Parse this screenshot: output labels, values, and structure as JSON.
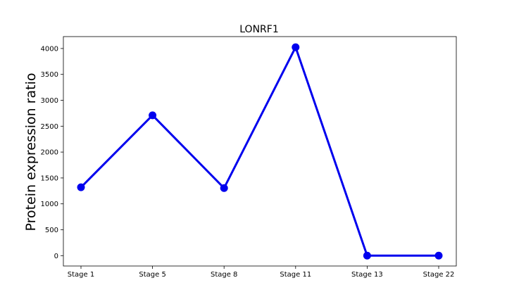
{
  "chart_data": {
    "type": "line",
    "title": "LONRF1",
    "xlabel": "",
    "ylabel": "Protein expression ratio",
    "categories": [
      "Stage 1",
      "Stage 5",
      "Stage 8",
      "Stage 11",
      "Stage 13",
      "Stage 22"
    ],
    "series": [
      {
        "name": "LONRF1",
        "values": [
          1320,
          2710,
          1305,
          4025,
          0,
          0
        ],
        "color": "#0000ee"
      }
    ],
    "yticks": [
      0,
      500,
      1000,
      1500,
      2000,
      2500,
      3000,
      3500,
      4000
    ],
    "ylim": [
      -200,
      4230
    ],
    "grid": false,
    "legend": "none"
  }
}
